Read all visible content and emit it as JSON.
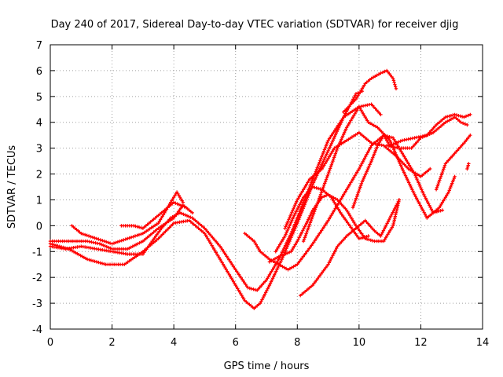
{
  "chart_data": {
    "type": "line",
    "title": "Day 240 of 2017, Sidereal Day-to-day VTEC variation (SDTVAR) for receiver djig",
    "xlabel": "GPS time / hours",
    "ylabel": "SDTVAR / TECUs",
    "xlim": [
      0,
      14
    ],
    "ylim": [
      -4,
      7
    ],
    "x_ticks": [
      "0",
      "2",
      "4",
      "6",
      "8",
      "10",
      "12",
      "14"
    ],
    "y_ticks": [
      "-4",
      "-3",
      "-2",
      "-1",
      "0",
      "1",
      "2",
      "3",
      "4",
      "5",
      "6",
      "7"
    ],
    "grid": true,
    "marker": "+",
    "color": "#ff0000",
    "series": [
      {
        "name": "s1",
        "points": [
          [
            0,
            -0.7
          ],
          [
            0.6,
            -0.9
          ],
          [
            1.2,
            -1.3
          ],
          [
            1.8,
            -1.5
          ],
          [
            2.4,
            -1.5
          ],
          [
            3.0,
            -1.0
          ],
          [
            3.5,
            -0.5
          ],
          [
            4.0,
            0.1
          ],
          [
            4.5,
            0.2
          ],
          [
            5.0,
            -0.3
          ],
          [
            5.5,
            -1.3
          ],
          [
            6.0,
            -2.3
          ],
          [
            6.3,
            -2.9
          ],
          [
            6.6,
            -3.2
          ],
          [
            6.8,
            -3.0
          ],
          [
            7.1,
            -2.3
          ],
          [
            7.5,
            -1.3
          ],
          [
            8.0,
            0.1
          ],
          [
            8.5,
            1.6
          ],
          [
            9.0,
            2.9
          ],
          [
            9.5,
            4.2
          ],
          [
            9.9,
            5.1
          ],
          [
            10.1,
            5.2
          ]
        ]
      },
      {
        "name": "s2",
        "points": [
          [
            0,
            -0.8
          ],
          [
            0.5,
            -0.9
          ],
          [
            1.0,
            -0.8
          ],
          [
            1.5,
            -0.9
          ],
          [
            2.0,
            -1.0
          ],
          [
            2.5,
            -1.1
          ],
          [
            3.0,
            -1.1
          ],
          [
            3.3,
            -0.6
          ],
          [
            3.6,
            -0.1
          ],
          [
            3.9,
            0.3
          ],
          [
            4.2,
            0.5
          ],
          [
            4.6,
            0.3
          ],
          [
            5.0,
            -0.1
          ],
          [
            5.5,
            -0.8
          ],
          [
            6.0,
            -1.7
          ],
          [
            6.4,
            -2.4
          ],
          [
            6.7,
            -2.5
          ],
          [
            7.0,
            -2.1
          ],
          [
            7.4,
            -1.3
          ],
          [
            7.8,
            -0.3
          ],
          [
            8.2,
            0.9
          ],
          [
            8.6,
            2.1
          ],
          [
            9.0,
            3.3
          ],
          [
            9.5,
            4.2
          ],
          [
            10.0,
            4.6
          ],
          [
            10.4,
            4.7
          ],
          [
            10.7,
            4.3
          ]
        ]
      },
      {
        "name": "s3",
        "points": [
          [
            0,
            -0.6
          ],
          [
            0.4,
            -0.6
          ],
          [
            0.8,
            -0.6
          ],
          [
            1.2,
            -0.6
          ],
          [
            1.6,
            -0.7
          ],
          [
            2.0,
            -0.9
          ],
          [
            2.5,
            -0.9
          ],
          [
            3.0,
            -0.6
          ],
          [
            3.5,
            -0.1
          ],
          [
            4.0,
            0.3
          ],
          [
            4.3,
            0.8
          ],
          [
            4.6,
            0.5
          ]
        ]
      },
      {
        "name": "s4",
        "points": [
          [
            0.7,
            0.0
          ],
          [
            1.0,
            -0.3
          ],
          [
            1.5,
            -0.5
          ],
          [
            2.0,
            -0.7
          ],
          [
            2.5,
            -0.5
          ],
          [
            3.0,
            -0.3
          ],
          [
            3.5,
            0.1
          ],
          [
            3.8,
            0.7
          ],
          [
            4.1,
            1.3
          ],
          [
            4.3,
            0.9
          ]
        ]
      },
      {
        "name": "s5",
        "points": [
          [
            2.3,
            0.0
          ],
          [
            2.7,
            0.0
          ],
          [
            3.0,
            -0.1
          ],
          [
            3.5,
            0.4
          ],
          [
            4.0,
            0.9
          ],
          [
            4.4,
            0.7
          ]
        ]
      },
      {
        "name": "s6",
        "points": [
          [
            6.3,
            -0.3
          ],
          [
            6.6,
            -0.6
          ],
          [
            6.8,
            -1.0
          ],
          [
            7.1,
            -1.3
          ],
          [
            7.4,
            -1.5
          ],
          [
            7.7,
            -1.7
          ],
          [
            8.0,
            -1.5
          ],
          [
            8.5,
            -0.7
          ],
          [
            9.0,
            0.2
          ],
          [
            9.5,
            1.2
          ],
          [
            10.0,
            2.2
          ],
          [
            10.4,
            3.1
          ],
          [
            10.8,
            3.5
          ],
          [
            11.1,
            3.4
          ],
          [
            11.5,
            2.6
          ],
          [
            11.8,
            2.0
          ],
          [
            12.1,
            1.2
          ],
          [
            12.4,
            0.5
          ],
          [
            12.7,
            0.6
          ]
        ]
      },
      {
        "name": "s7",
        "points": [
          [
            7.1,
            -1.4
          ],
          [
            7.4,
            -1.2
          ],
          [
            7.8,
            -1.0
          ],
          [
            8.0,
            -0.6
          ],
          [
            8.3,
            0.1
          ],
          [
            8.5,
            0.6
          ],
          [
            8.8,
            1.1
          ],
          [
            9.0,
            1.2
          ],
          [
            9.3,
            1.0
          ],
          [
            9.6,
            0.6
          ],
          [
            9.9,
            0.0
          ],
          [
            10.2,
            -0.5
          ],
          [
            10.5,
            -0.6
          ],
          [
            10.8,
            -0.6
          ],
          [
            11.1,
            0.0
          ],
          [
            11.3,
            1.0
          ]
        ]
      },
      {
        "name": "s8",
        "points": [
          [
            7.3,
            -1.0
          ],
          [
            7.6,
            -0.4
          ],
          [
            7.9,
            0.4
          ],
          [
            8.2,
            1.1
          ],
          [
            8.5,
            1.5
          ],
          [
            8.8,
            1.4
          ],
          [
            9.1,
            1.1
          ],
          [
            9.4,
            0.5
          ],
          [
            9.7,
            0.0
          ],
          [
            10.0,
            -0.5
          ],
          [
            10.3,
            -0.4
          ]
        ]
      },
      {
        "name": "s9",
        "points": [
          [
            8.1,
            -2.7
          ],
          [
            8.5,
            -2.3
          ],
          [
            9.0,
            -1.5
          ],
          [
            9.3,
            -0.8
          ],
          [
            9.6,
            -0.4
          ],
          [
            9.9,
            -0.1
          ],
          [
            10.2,
            0.2
          ],
          [
            10.5,
            -0.2
          ],
          [
            10.7,
            -0.4
          ],
          [
            11.0,
            0.3
          ],
          [
            11.3,
            1.0
          ]
        ]
      },
      {
        "name": "s10",
        "points": [
          [
            7.6,
            -0.1
          ],
          [
            8.0,
            1.0
          ],
          [
            8.4,
            1.8
          ],
          [
            8.8,
            2.2
          ],
          [
            9.2,
            3.0
          ],
          [
            9.6,
            3.3
          ],
          [
            10.0,
            3.6
          ],
          [
            10.4,
            3.2
          ],
          [
            10.8,
            3.1
          ],
          [
            11.2,
            2.7
          ],
          [
            11.6,
            2.2
          ],
          [
            12.0,
            1.9
          ],
          [
            12.3,
            2.2
          ]
        ]
      },
      {
        "name": "s11",
        "points": [
          [
            8.2,
            -0.6
          ],
          [
            8.6,
            0.7
          ],
          [
            9.0,
            2.0
          ],
          [
            9.3,
            3.0
          ],
          [
            9.6,
            3.8
          ],
          [
            10.0,
            4.6
          ],
          [
            10.3,
            4.0
          ],
          [
            10.6,
            3.8
          ],
          [
            11.0,
            3.3
          ],
          [
            11.4,
            2.2
          ],
          [
            11.8,
            1.2
          ],
          [
            12.2,
            0.3
          ],
          [
            12.6,
            0.7
          ],
          [
            12.9,
            1.3
          ],
          [
            13.1,
            1.9
          ]
        ]
      },
      {
        "name": "s12",
        "points": [
          [
            9.8,
            0.7
          ],
          [
            10.1,
            1.7
          ],
          [
            10.4,
            2.5
          ],
          [
            10.6,
            3.1
          ],
          [
            10.8,
            3.5
          ],
          [
            11.0,
            3.1
          ],
          [
            11.4,
            3.3
          ],
          [
            11.8,
            3.4
          ],
          [
            12.2,
            3.5
          ],
          [
            12.5,
            3.9
          ],
          [
            12.8,
            4.2
          ],
          [
            13.1,
            4.3
          ],
          [
            13.4,
            4.2
          ],
          [
            13.6,
            4.3
          ]
        ]
      },
      {
        "name": "s13",
        "points": [
          [
            10.9,
            3.1
          ],
          [
            11.3,
            3.0
          ],
          [
            11.7,
            3.0
          ],
          [
            12.0,
            3.4
          ],
          [
            12.4,
            3.6
          ],
          [
            12.8,
            4.0
          ],
          [
            13.1,
            4.2
          ],
          [
            13.3,
            4.0
          ],
          [
            13.5,
            3.9
          ]
        ]
      },
      {
        "name": "s14",
        "points": [
          [
            12.5,
            1.4
          ],
          [
            12.8,
            2.4
          ],
          [
            13.1,
            2.8
          ],
          [
            13.4,
            3.2
          ],
          [
            13.6,
            3.5
          ]
        ]
      },
      {
        "name": "s15",
        "points": [
          [
            9.5,
            4.4
          ],
          [
            9.9,
            4.9
          ],
          [
            10.2,
            5.5
          ],
          [
            10.4,
            5.7
          ],
          [
            10.7,
            5.9
          ],
          [
            10.9,
            6.0
          ],
          [
            11.1,
            5.7
          ],
          [
            11.2,
            5.3
          ]
        ]
      },
      {
        "name": "s16",
        "points": [
          [
            13.5,
            2.2
          ],
          [
            13.55,
            2.4
          ]
        ]
      }
    ]
  }
}
